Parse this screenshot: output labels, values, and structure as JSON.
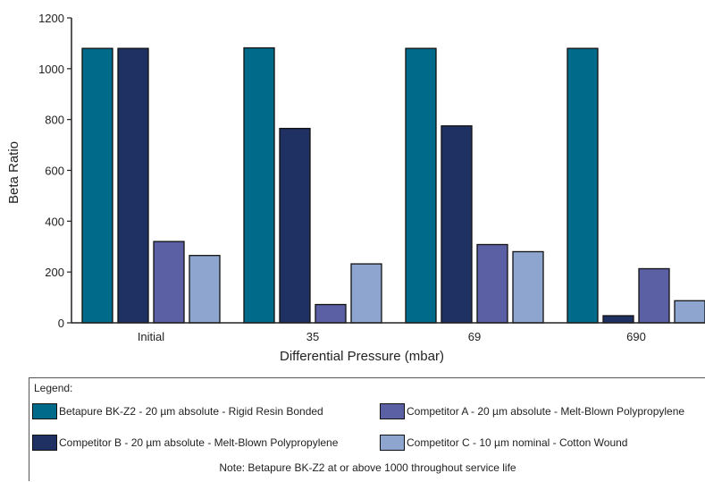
{
  "chart_data": {
    "type": "bar",
    "xlabel": "Differential Pressure (mbar)",
    "ylabel": "Beta Ratio",
    "ylim": [
      0,
      1200
    ],
    "yticks": [
      0,
      200,
      400,
      600,
      800,
      1000,
      1200
    ],
    "categories": [
      "Initial",
      "35",
      "69",
      "690"
    ],
    "grid": false,
    "legend_placement": "bottom",
    "series": [
      {
        "name": "Betapure BK-Z2 - 20 µm absolute - Rigid Resin Bonded",
        "color": "#006a8a",
        "values": [
          1080,
          1082,
          1080,
          1080
        ]
      },
      {
        "name": "Competitor B - 20 µm absolute - Melt-Blown Polypropylene",
        "color": "#1f3163",
        "values": [
          1080,
          765,
          775,
          28
        ]
      },
      {
        "name": "Competitor A - 20 µm absolute - Melt-Blown Polypropylene",
        "color": "#5b5fa3",
        "values": [
          320,
          72,
          308,
          213
        ]
      },
      {
        "name": "Competitor C - 10 µm nominal - Cotton Wound",
        "color": "#8ea5cf",
        "values": [
          265,
          232,
          280,
          87
        ]
      }
    ]
  },
  "legend": {
    "title": "Legend:",
    "note": "Note: Betapure BK-Z2 at or above 1000 throughout service life"
  }
}
